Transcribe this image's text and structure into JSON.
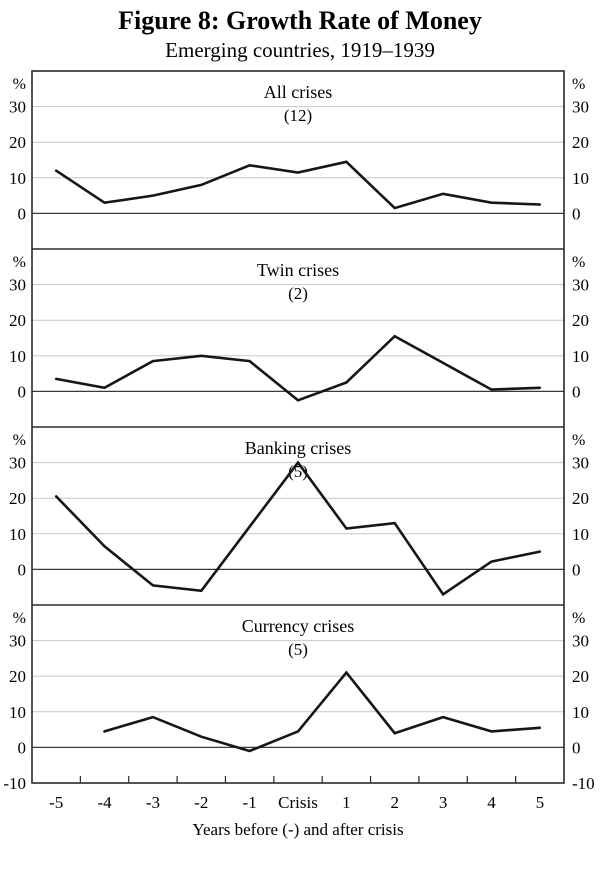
{
  "title": "Figure 8: Growth Rate of Money",
  "subtitle": "Emerging countries, 1919–1939",
  "colors": {
    "line": "#161616",
    "grid": "#c6c6c6",
    "zero": "#3a3a3a",
    "frame": "#2a2a2a",
    "text": "#000000"
  },
  "chart_data": {
    "type": "line",
    "categories": [
      "-5",
      "-4",
      "-3",
      "-2",
      "-1",
      "Crisis",
      "1",
      "2",
      "3",
      "4",
      "5"
    ],
    "x_axis_label": "Years before (-) and after crisis",
    "y_unit": "%",
    "ylim": [
      -10,
      40
    ],
    "yticks": [
      0,
      10,
      20,
      30
    ],
    "ymin_label": "-10",
    "grid": "horizontal-only",
    "legend": "none",
    "panels": [
      {
        "title": "All crises",
        "count_label": "(12)",
        "values": [
          12,
          3,
          5,
          8,
          13.5,
          11.5,
          14.5,
          1.5,
          5.5,
          3,
          2.5
        ]
      },
      {
        "title": "Twin crises",
        "count_label": "(2)",
        "values": [
          3.5,
          1,
          8.5,
          10,
          8.5,
          -2.5,
          2.5,
          15.5,
          8,
          0.5,
          1
        ]
      },
      {
        "title": "Banking crises",
        "count_label": "(5)",
        "values": [
          20.5,
          6.5,
          -4.5,
          -6,
          12,
          30,
          11.5,
          13,
          -7,
          2.2,
          5
        ]
      },
      {
        "title": "Currency crises",
        "count_label": "(5)",
        "values": [
          null,
          4.5,
          8.5,
          3,
          -1,
          4.5,
          21,
          4,
          8.5,
          4.5,
          5.5
        ]
      }
    ]
  }
}
